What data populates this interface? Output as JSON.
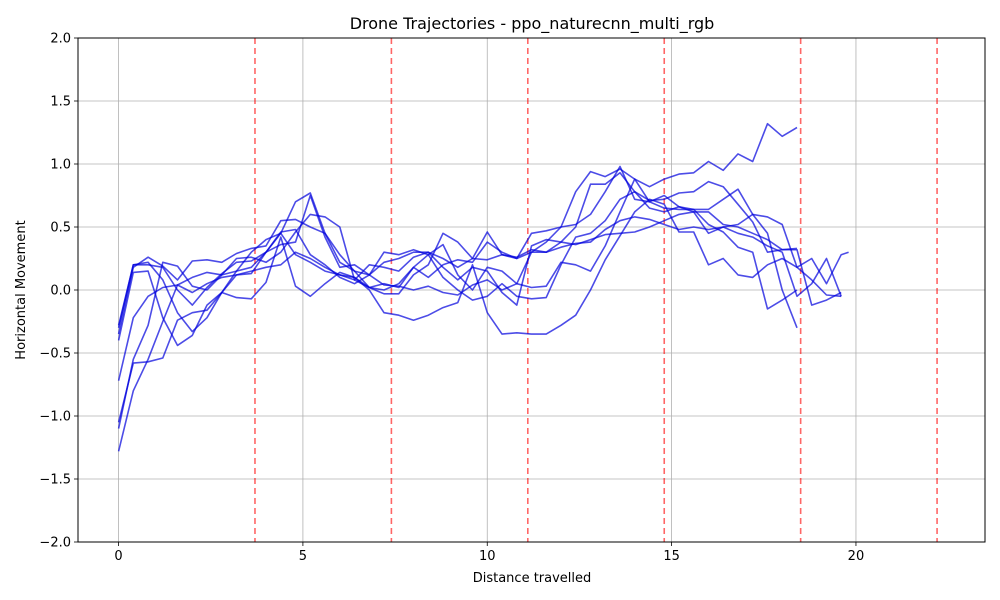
{
  "chart_data": {
    "type": "line",
    "title": "Drone Trajectories - ppo_naturecnn_multi_rgb",
    "xlabel": "Distance travelled",
    "ylabel": "Horizontal Movement",
    "xlim": [
      -1.1,
      23.5
    ],
    "ylim": [
      -2.0,
      2.0
    ],
    "xticks": [
      0,
      5,
      10,
      15,
      20
    ],
    "yticks": [
      -2.0,
      -1.5,
      -1.0,
      -0.5,
      0.0,
      0.5,
      1.0,
      1.5,
      2.0
    ],
    "xtick_labels": [
      "0",
      "5",
      "10",
      "15",
      "20"
    ],
    "ytick_labels": [
      "−2.0",
      "−1.5",
      "−1.0",
      "−0.5",
      "0.0",
      "0.5",
      "1.0",
      "1.5",
      "2.0"
    ],
    "grid": true,
    "line_color": "#0000dd",
    "line_opacity": 0.7,
    "vlines": [
      3.7,
      7.4,
      11.1,
      14.8,
      18.5,
      22.2
    ],
    "vline_color": "#ff0000",
    "series": [
      {
        "x": [
          0.0,
          0.4,
          0.8,
          1.2,
          1.6,
          2.0,
          2.4,
          2.8,
          3.2,
          3.6,
          4.0,
          4.4,
          4.8,
          5.2,
          5.6,
          6.0,
          6.4,
          6.8,
          7.2,
          7.6,
          8.0,
          8.4,
          8.8,
          9.2,
          9.6,
          10.0,
          10.4,
          10.8,
          11.2,
          11.6,
          12.0,
          12.4,
          12.8,
          13.2,
          13.6,
          14.0,
          14.4,
          14.8,
          15.2,
          15.6,
          16.0,
          16.4,
          16.8,
          17.2,
          17.6,
          18.0,
          18.4
        ],
        "y": [
          -0.28,
          0.2,
          0.2,
          0.18,
          0.0,
          -0.12,
          0.02,
          0.13,
          0.22,
          0.23,
          0.3,
          0.45,
          0.28,
          0.22,
          0.15,
          0.12,
          0.08,
          0.02,
          0.0,
          0.05,
          0.18,
          0.28,
          0.36,
          0.12,
          0.0,
          0.18,
          0.15,
          0.05,
          0.3,
          0.38,
          0.5,
          0.78,
          0.94,
          0.9,
          0.96,
          0.88,
          0.82,
          0.88,
          0.92,
          0.93,
          1.02,
          0.95,
          1.08,
          1.02,
          1.32,
          1.22,
          1.29
        ]
      },
      {
        "x": [
          0.0,
          0.4,
          0.8,
          1.2,
          1.6,
          2.0,
          2.4,
          2.8,
          3.2,
          3.6,
          4.0,
          4.4,
          4.8,
          5.2,
          5.6,
          6.0,
          6.4,
          6.8,
          7.2,
          7.6,
          8.0,
          8.4,
          8.8,
          9.2,
          9.6,
          10.0,
          10.4,
          10.8,
          11.2,
          11.6,
          12.0,
          12.4,
          12.8,
          13.2,
          13.6,
          14.0,
          14.4,
          14.8,
          15.2,
          15.6,
          16.0,
          16.4,
          16.8,
          17.2,
          17.6,
          18.0,
          18.4
        ],
        "y": [
          -0.35,
          0.18,
          0.26,
          0.19,
          0.08,
          0.23,
          0.24,
          0.22,
          0.29,
          0.33,
          0.35,
          0.55,
          0.56,
          0.5,
          0.45,
          0.22,
          0.15,
          0.12,
          0.22,
          0.25,
          0.3,
          0.3,
          0.25,
          0.18,
          0.25,
          0.24,
          0.28,
          0.26,
          0.32,
          0.3,
          0.38,
          0.5,
          0.84,
          0.84,
          0.93,
          0.78,
          0.71,
          0.72,
          0.77,
          0.78,
          0.86,
          0.82,
          0.68,
          0.54,
          0.3,
          0.32,
          0.33
        ]
      },
      {
        "x": [
          0.0,
          0.4,
          0.8,
          1.2,
          1.6,
          2.0,
          2.4,
          2.8,
          3.2,
          3.6,
          4.0,
          4.4,
          4.8,
          5.2,
          5.6,
          6.0,
          6.4,
          6.8,
          7.2,
          7.6,
          8.0,
          8.4,
          8.8,
          9.2,
          9.6,
          10.0,
          10.4,
          10.8,
          11.2,
          11.6,
          12.0,
          12.4,
          12.8,
          13.2,
          13.6,
          14.0,
          14.4,
          14.8,
          15.2,
          15.6,
          16.0,
          16.4,
          16.8,
          17.2,
          17.6,
          18.0,
          18.4
        ],
        "y": [
          -1.1,
          -0.55,
          -0.28,
          0.22,
          0.19,
          0.03,
          0.0,
          0.12,
          0.15,
          0.3,
          0.4,
          0.45,
          0.7,
          0.77,
          0.45,
          0.28,
          0.15,
          0.02,
          -0.03,
          -0.03,
          0.12,
          0.2,
          0.45,
          0.38,
          0.25,
          0.46,
          0.28,
          0.25,
          0.45,
          0.47,
          0.5,
          0.52,
          0.6,
          0.78,
          0.98,
          0.72,
          0.7,
          0.75,
          0.66,
          0.64,
          0.64,
          0.72,
          0.8,
          0.6,
          0.45,
          0.0,
          -0.3
        ]
      },
      {
        "x": [
          0.0,
          0.4,
          0.8,
          1.2,
          1.6,
          2.0,
          2.4,
          2.8,
          3.2,
          3.6,
          4.0,
          4.4,
          4.8,
          5.2,
          5.6,
          6.0,
          6.4,
          6.8,
          7.2,
          7.6,
          8.0,
          8.4,
          8.8,
          9.2,
          9.6,
          10.0,
          10.4,
          10.8,
          11.2,
          11.6,
          12.0,
          12.4,
          12.8,
          13.2,
          13.6,
          14.0,
          14.4,
          14.8,
          15.2,
          15.6,
          16.0,
          16.4,
          16.8,
          17.2,
          17.6,
          18.0,
          18.4,
          18.8,
          19.2,
          19.6
        ],
        "y": [
          -1.28,
          -0.8,
          -0.55,
          -0.25,
          0.04,
          0.1,
          0.14,
          0.12,
          0.25,
          0.26,
          0.22,
          0.3,
          0.46,
          0.6,
          0.58,
          0.5,
          0.08,
          0.2,
          0.18,
          0.15,
          0.26,
          0.3,
          0.18,
          0.08,
          0.18,
          0.15,
          -0.02,
          -0.12,
          0.35,
          0.4,
          0.38,
          0.36,
          0.4,
          0.44,
          0.45,
          0.46,
          0.5,
          0.55,
          0.6,
          0.62,
          0.62,
          0.52,
          0.5,
          0.45,
          0.4,
          0.32,
          0.32,
          -0.12,
          -0.08,
          -0.02
        ]
      },
      {
        "x": [
          0.0,
          0.4,
          0.8,
          1.2,
          1.6,
          2.0,
          2.4,
          2.8,
          3.2,
          3.6,
          4.0,
          4.4,
          4.8,
          5.2,
          5.6,
          6.0,
          6.4,
          6.8,
          7.2,
          7.6,
          8.0,
          8.4,
          8.8,
          9.2,
          9.6,
          10.0,
          10.4,
          10.8,
          11.2,
          11.6,
          12.0,
          12.4,
          12.8,
          13.2,
          13.6,
          14.0,
          14.4,
          14.8,
          15.2,
          15.6,
          16.0,
          16.4,
          16.8,
          17.2,
          17.6,
          18.0,
          18.4,
          18.8,
          19.2,
          19.6
        ],
        "y": [
          -0.72,
          -0.22,
          -0.05,
          0.02,
          0.04,
          -0.02,
          0.05,
          0.1,
          0.12,
          0.15,
          0.18,
          0.2,
          0.3,
          0.25,
          0.18,
          0.12,
          0.1,
          0.02,
          0.05,
          0.02,
          0.18,
          0.1,
          0.2,
          0.24,
          0.22,
          0.38,
          0.3,
          0.25,
          0.3,
          0.3,
          0.34,
          0.37,
          0.38,
          0.48,
          0.55,
          0.58,
          0.56,
          0.52,
          0.48,
          0.5,
          0.48,
          0.5,
          0.45,
          0.42,
          0.35,
          0.3,
          -0.05,
          0.05,
          0.25,
          -0.05
        ]
      },
      {
        "x": [
          0.0,
          0.4,
          0.8,
          1.2,
          1.6,
          2.0,
          2.4,
          2.8,
          3.2,
          3.6,
          4.0,
          4.4,
          4.8,
          5.2,
          5.6,
          6.0,
          6.4,
          6.8,
          7.2,
          7.6,
          8.0,
          8.4,
          8.8,
          9.2,
          9.6,
          10.0,
          10.4,
          10.8,
          11.2,
          11.6,
          12.0,
          12.4,
          12.8,
          13.2,
          13.6,
          14.0,
          14.4,
          14.8,
          15.2,
          15.6,
          16.0,
          16.4,
          16.8,
          17.2,
          17.6,
          18.0,
          18.4,
          18.8,
          19.2,
          19.6,
          19.8
        ],
        "y": [
          -0.4,
          0.14,
          0.15,
          -0.22,
          -0.44,
          -0.36,
          -0.12,
          -0.02,
          0.15,
          0.18,
          0.3,
          0.36,
          0.38,
          0.75,
          0.42,
          0.18,
          0.2,
          0.12,
          0.3,
          0.28,
          0.32,
          0.28,
          0.1,
          0.0,
          -0.08,
          -0.05,
          0.05,
          -0.05,
          -0.07,
          -0.06,
          0.2,
          0.42,
          0.45,
          0.55,
          0.72,
          0.78,
          0.65,
          0.62,
          0.66,
          0.62,
          0.45,
          0.5,
          0.52,
          0.6,
          0.58,
          0.52,
          0.18,
          0.25,
          0.05,
          0.28,
          0.3
        ]
      },
      {
        "x": [
          0.0,
          0.4,
          0.8,
          1.2,
          1.6,
          2.0,
          2.4,
          2.8,
          3.2,
          3.6,
          4.0,
          4.4,
          4.8,
          5.2,
          5.6,
          6.0,
          6.4,
          6.8,
          7.2,
          7.6,
          8.0,
          8.4,
          8.8,
          9.2,
          9.6,
          10.0,
          10.4,
          10.8,
          11.2,
          11.6,
          12.0,
          12.4,
          12.8,
          13.2,
          13.6,
          14.0,
          14.4,
          14.8,
          15.2,
          15.6,
          16.0,
          16.4,
          16.8,
          17.2,
          17.6,
          18.0,
          18.4,
          18.8,
          19.2,
          19.6
        ],
        "y": [
          -1.05,
          -0.58,
          -0.57,
          -0.54,
          -0.24,
          -0.18,
          -0.16,
          -0.02,
          -0.06,
          -0.07,
          0.06,
          0.42,
          0.03,
          -0.05,
          0.05,
          0.14,
          0.1,
          0.0,
          -0.18,
          -0.2,
          -0.24,
          -0.2,
          -0.14,
          -0.1,
          0.2,
          -0.18,
          -0.35,
          -0.34,
          -0.35,
          -0.35,
          -0.28,
          -0.2,
          0.0,
          0.24,
          0.43,
          0.62,
          0.72,
          0.68,
          0.46,
          0.46,
          0.2,
          0.25,
          0.12,
          0.1,
          0.2,
          0.25,
          0.18,
          0.08,
          -0.04,
          -0.05
        ]
      },
      {
        "x": [
          0.0,
          0.4,
          0.8,
          1.2,
          1.6,
          2.0,
          2.4,
          2.8,
          3.2,
          3.6,
          4.0,
          4.4,
          4.8,
          5.2,
          5.6,
          6.0,
          6.4,
          6.8,
          7.2,
          7.6,
          8.0,
          8.4,
          8.8,
          9.2,
          9.6,
          10.0,
          10.4,
          10.8,
          11.2,
          11.6,
          12.0,
          12.4,
          12.8,
          13.2,
          13.6,
          14.0,
          14.4,
          14.8,
          15.2,
          15.6,
          16.0,
          16.4,
          16.8,
          17.2,
          17.6,
          18.0,
          18.4
        ],
        "y": [
          -0.3,
          0.2,
          0.22,
          0.08,
          -0.18,
          -0.33,
          -0.22,
          -0.02,
          0.12,
          0.13,
          0.3,
          0.46,
          0.48,
          0.28,
          0.2,
          0.1,
          0.05,
          0.12,
          0.04,
          0.03,
          0.0,
          0.03,
          -0.02,
          -0.04,
          0.04,
          0.08,
          0.0,
          0.05,
          0.02,
          0.03,
          0.22,
          0.2,
          0.15,
          0.35,
          0.62,
          0.88,
          0.7,
          0.65,
          0.64,
          0.64,
          0.52,
          0.46,
          0.34,
          0.3,
          -0.15,
          -0.08,
          0.0
        ]
      }
    ]
  }
}
